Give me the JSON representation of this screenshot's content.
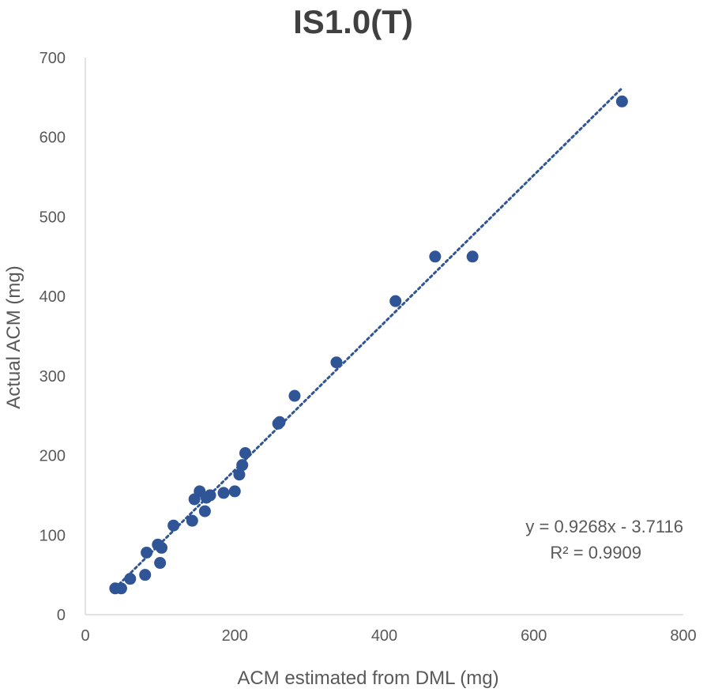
{
  "chart_data": {
    "type": "scatter",
    "title": "IS1.0(T)",
    "xlabel": "ACM estimated from DML (mg)",
    "ylabel": "Actual ACM (mg)",
    "xlim": [
      0,
      800
    ],
    "ylim": [
      0,
      700
    ],
    "x_ticks": [
      "0",
      "200",
      "400",
      "600",
      "800"
    ],
    "y_ticks": [
      "0",
      "100",
      "200",
      "300",
      "400",
      "500",
      "600",
      "700"
    ],
    "grid": false,
    "legend": "none",
    "marker_color": "#2F5597",
    "series": [
      {
        "points": [
          {
            "x": 40,
            "y": 33
          },
          {
            "x": 48,
            "y": 33
          },
          {
            "x": 60,
            "y": 45
          },
          {
            "x": 80,
            "y": 50
          },
          {
            "x": 82,
            "y": 78
          },
          {
            "x": 97,
            "y": 88
          },
          {
            "x": 100,
            "y": 65
          },
          {
            "x": 102,
            "y": 84
          },
          {
            "x": 118,
            "y": 112
          },
          {
            "x": 143,
            "y": 118
          },
          {
            "x": 146,
            "y": 145
          },
          {
            "x": 153,
            "y": 155
          },
          {
            "x": 160,
            "y": 130
          },
          {
            "x": 162,
            "y": 147
          },
          {
            "x": 167,
            "y": 150
          },
          {
            "x": 185,
            "y": 153
          },
          {
            "x": 200,
            "y": 155
          },
          {
            "x": 206,
            "y": 176
          },
          {
            "x": 210,
            "y": 188
          },
          {
            "x": 214,
            "y": 203
          },
          {
            "x": 258,
            "y": 240
          },
          {
            "x": 260,
            "y": 242
          },
          {
            "x": 280,
            "y": 275
          },
          {
            "x": 336,
            "y": 317
          },
          {
            "x": 415,
            "y": 394
          },
          {
            "x": 468,
            "y": 450
          },
          {
            "x": 518,
            "y": 450
          },
          {
            "x": 718,
            "y": 645
          }
        ]
      }
    ],
    "trendline": {
      "style": "dotted",
      "color": "#2F5597",
      "slope": 0.9268,
      "intercept": -3.7116,
      "x_range": [
        40,
        718
      ],
      "equation": "y = 0.9268x - 3.7116",
      "r_squared": "R² = 0.9909"
    }
  }
}
